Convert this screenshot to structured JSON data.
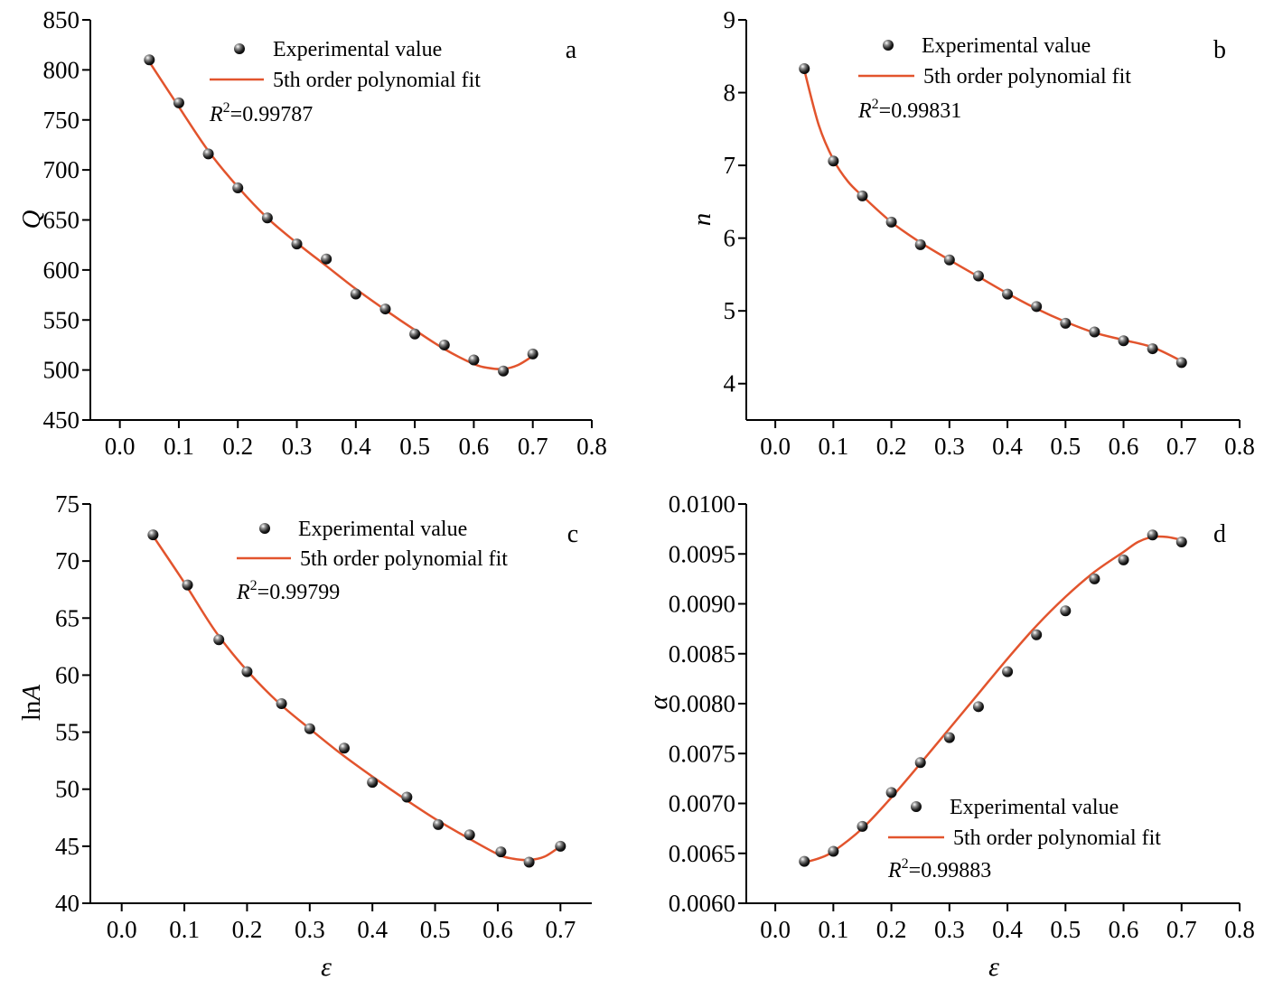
{
  "chart_data": [
    {
      "type": "scatter",
      "panel_letter": "a",
      "ylabel": "Q",
      "xlabel": "",
      "xlim": [
        -0.05,
        0.8
      ],
      "ylim": [
        450,
        850
      ],
      "x_ticks": [
        "0.0",
        "0.1",
        "0.2",
        "0.3",
        "0.4",
        "0.5",
        "0.6",
        "0.7",
        "0.8"
      ],
      "y_ticks": [
        "450",
        "500",
        "550",
        "600",
        "650",
        "700",
        "750",
        "800",
        "850"
      ],
      "legend": {
        "position": "top-right",
        "marker_label": "Experimental value",
        "line_label": "5th order polynomial fit",
        "r2_symbol": "R",
        "r2_sup": "2",
        "r2_value": "=0.99787"
      },
      "series": [
        {
          "kind": "points",
          "x": [
            0.05,
            0.1,
            0.15,
            0.2,
            0.25,
            0.3,
            0.35,
            0.4,
            0.45,
            0.5,
            0.55,
            0.6,
            0.65,
            0.7
          ],
          "y": [
            810,
            767,
            716,
            682,
            652,
            626,
            611,
            576,
            561,
            536,
            525,
            510,
            499,
            516
          ]
        },
        {
          "kind": "fit",
          "x": [
            0.05,
            0.1,
            0.15,
            0.2,
            0.25,
            0.3,
            0.35,
            0.4,
            0.45,
            0.5,
            0.55,
            0.6,
            0.625,
            0.65,
            0.675,
            0.7
          ],
          "y": [
            808,
            763,
            719,
            683,
            652,
            627,
            604,
            581,
            560,
            540,
            521,
            506,
            502,
            501,
            505,
            514
          ]
        }
      ]
    },
    {
      "type": "scatter",
      "panel_letter": "b",
      "ylabel": "n",
      "xlabel": "",
      "xlim": [
        -0.05,
        0.8
      ],
      "ylim": [
        3.5,
        9
      ],
      "x_ticks": [
        "0.0",
        "0.1",
        "0.2",
        "0.3",
        "0.4",
        "0.5",
        "0.6",
        "0.7",
        "0.8"
      ],
      "y_ticks": [
        "4",
        "5",
        "6",
        "7",
        "8",
        "9"
      ],
      "legend": {
        "position": "top-right",
        "marker_label": "Experimental value",
        "line_label": "5th order polynomial fit",
        "r2_symbol": "R",
        "r2_sup": "2",
        "r2_value": "=0.99831"
      },
      "series": [
        {
          "kind": "points",
          "x": [
            0.05,
            0.1,
            0.15,
            0.2,
            0.25,
            0.3,
            0.35,
            0.4,
            0.45,
            0.5,
            0.55,
            0.6,
            0.65,
            0.7
          ],
          "y": [
            8.33,
            7.06,
            6.58,
            6.22,
            5.91,
            5.7,
            5.48,
            5.23,
            5.06,
            4.83,
            4.71,
            4.59,
            4.48,
            4.29
          ]
        },
        {
          "kind": "fit",
          "x": [
            0.05,
            0.075,
            0.1,
            0.125,
            0.15,
            0.2,
            0.25,
            0.3,
            0.35,
            0.4,
            0.45,
            0.5,
            0.55,
            0.6,
            0.65,
            0.7
          ],
          "y": [
            8.31,
            7.55,
            7.08,
            6.78,
            6.58,
            6.22,
            5.94,
            5.7,
            5.47,
            5.24,
            5.03,
            4.85,
            4.7,
            4.6,
            4.5,
            4.31
          ]
        }
      ]
    },
    {
      "type": "scatter",
      "panel_letter": "c",
      "ylabel": "lnA",
      "xlabel": "ε",
      "xlim": [
        -0.05,
        0.75
      ],
      "ylim": [
        40,
        75
      ],
      "x_ticks": [
        "0.0",
        "0.1",
        "0.2",
        "0.3",
        "0.4",
        "0.5",
        "0.6",
        "0.7"
      ],
      "y_ticks": [
        "40",
        "45",
        "50",
        "55",
        "60",
        "65",
        "70",
        "75"
      ],
      "legend": {
        "position": "top-right",
        "marker_label": "Experimental value",
        "line_label": "5th order polynomial fit",
        "r2_symbol": "R",
        "r2_sup": "2",
        "r2_value": "=0.99799"
      },
      "series": [
        {
          "kind": "points",
          "x": [
            0.05,
            0.105,
            0.155,
            0.2,
            0.255,
            0.3,
            0.355,
            0.4,
            0.455,
            0.505,
            0.555,
            0.605,
            0.65,
            0.7
          ],
          "y": [
            72.3,
            67.9,
            63.1,
            60.3,
            57.5,
            55.3,
            53.6,
            50.6,
            49.3,
            46.9,
            46.0,
            44.5,
            43.6,
            45.0
          ]
        },
        {
          "kind": "fit",
          "x": [
            0.05,
            0.1,
            0.15,
            0.2,
            0.25,
            0.3,
            0.35,
            0.4,
            0.45,
            0.5,
            0.55,
            0.6,
            0.625,
            0.65,
            0.675,
            0.7
          ],
          "y": [
            72.2,
            68.1,
            63.8,
            60.4,
            57.6,
            55.3,
            53.1,
            51.1,
            49.2,
            47.4,
            45.8,
            44.3,
            43.9,
            43.8,
            44.1,
            45.0
          ]
        }
      ]
    },
    {
      "type": "scatter",
      "panel_letter": "d",
      "ylabel": "α",
      "xlabel": "ε",
      "xlim": [
        -0.05,
        0.8
      ],
      "ylim": [
        0.006,
        0.01
      ],
      "x_ticks": [
        "0.0",
        "0.1",
        "0.2",
        "0.3",
        "0.4",
        "0.5",
        "0.6",
        "0.7",
        "0.8"
      ],
      "y_ticks": [
        "0.0060",
        "0.0065",
        "0.0070",
        "0.0075",
        "0.0080",
        "0.0085",
        "0.0090",
        "0.0095",
        "0.0100"
      ],
      "legend": {
        "position": "bottom-right",
        "marker_label": "Experimental value",
        "line_label": "5th order polynomial fit",
        "r2_symbol": "R",
        "r2_sup": "2",
        "r2_value": "=0.99883"
      },
      "series": [
        {
          "kind": "points",
          "x": [
            0.05,
            0.1,
            0.15,
            0.2,
            0.25,
            0.3,
            0.35,
            0.4,
            0.45,
            0.5,
            0.55,
            0.6,
            0.65,
            0.7
          ],
          "y": [
            0.00642,
            0.00652,
            0.00677,
            0.00711,
            0.00741,
            0.00766,
            0.00797,
            0.00832,
            0.00869,
            0.00893,
            0.00925,
            0.00944,
            0.00969,
            0.00962
          ]
        },
        {
          "kind": "fit",
          "x": [
            0.05,
            0.075,
            0.1,
            0.15,
            0.2,
            0.25,
            0.3,
            0.35,
            0.4,
            0.45,
            0.5,
            0.55,
            0.6,
            0.625,
            0.65,
            0.675,
            0.7
          ],
          "y": [
            0.00641,
            0.00645,
            0.00652,
            0.00675,
            0.00706,
            0.0074,
            0.00775,
            0.0081,
            0.00845,
            0.00878,
            0.00907,
            0.00932,
            0.00952,
            0.00962,
            0.00967,
            0.00967,
            0.00964
          ]
        }
      ]
    }
  ]
}
